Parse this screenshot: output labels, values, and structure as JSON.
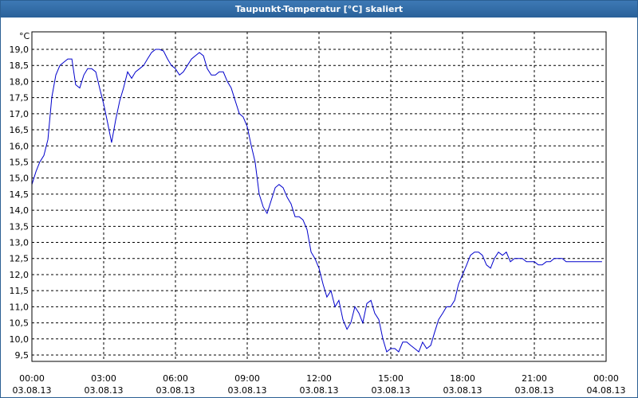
{
  "window": {
    "title": "Taupunkt-Temperatur [°C] skaliert"
  },
  "colors": {
    "titlebar": "#2f6aa5",
    "line": "#0000cc",
    "grid": "#000000"
  },
  "chart_data": {
    "type": "line",
    "title": "Taupunkt-Temperatur [°C] skaliert",
    "ylabel": "°C",
    "xlabel": "",
    "ylim": [
      9.5,
      19.4
    ],
    "xlim": [
      0,
      24
    ],
    "grid": true,
    "y_ticks": [
      "9,5",
      "10,0",
      "10,5",
      "11,0",
      "11,5",
      "12,0",
      "12,5",
      "13,0",
      "13,5",
      "14,0",
      "14,5",
      "15,0",
      "15,5",
      "16,0",
      "16,5",
      "17,0",
      "17,5",
      "18,0",
      "18,5",
      "19,0"
    ],
    "x_ticks": [
      {
        "time": "00:00",
        "date": "03.08.13"
      },
      {
        "time": "03:00",
        "date": "03.08.13"
      },
      {
        "time": "06:00",
        "date": "03.08.13"
      },
      {
        "time": "09:00",
        "date": "03.08.13"
      },
      {
        "time": "12:00",
        "date": "03.08.13"
      },
      {
        "time": "15:00",
        "date": "03.08.13"
      },
      {
        "time": "18:00",
        "date": "03.08.13"
      },
      {
        "time": "21:00",
        "date": "03.08.13"
      },
      {
        "time": "00:00",
        "date": "04.08.13"
      }
    ],
    "series": [
      {
        "x": [
          0,
          0.17,
          0.33,
          0.5,
          0.67,
          0.83,
          1.0,
          1.17,
          1.33,
          1.5,
          1.67,
          1.83,
          2.0,
          2.17,
          2.33,
          2.5,
          2.67,
          2.83,
          3.0,
          3.17,
          3.33,
          3.5,
          3.67,
          3.83,
          4.0,
          4.17,
          4.33,
          4.5,
          4.67,
          4.83,
          5.0,
          5.17,
          5.33,
          5.5,
          5.67,
          5.83,
          6.0,
          6.17,
          6.33,
          6.5,
          6.67,
          6.83,
          7.0,
          7.17,
          7.33,
          7.5,
          7.67,
          7.83,
          8.0,
          8.17,
          8.33,
          8.5,
          8.67,
          8.83,
          9.0,
          9.17,
          9.33,
          9.5,
          9.67,
          9.83,
          10.0,
          10.17,
          10.33,
          10.5,
          10.67,
          10.83,
          11.0,
          11.17,
          11.33,
          11.5,
          11.67,
          11.83,
          12.0,
          12.17,
          12.33,
          12.5,
          12.67,
          12.83,
          13.0,
          13.17,
          13.33,
          13.5,
          13.67,
          13.83,
          14.0,
          14.17,
          14.33,
          14.5,
          14.67,
          14.83,
          15.0,
          15.17,
          15.33,
          15.5,
          15.67,
          15.83,
          16.0,
          16.17,
          16.33,
          16.5,
          16.67,
          16.83,
          17.0,
          17.17,
          17.33,
          17.5,
          17.67,
          17.83,
          18.0,
          18.17,
          18.33,
          18.5,
          18.67,
          18.83,
          19.0,
          19.17,
          19.33,
          19.5,
          19.67,
          19.83,
          20.0,
          20.17,
          20.33,
          20.5,
          20.67,
          20.83,
          21.0,
          21.17,
          21.33,
          21.5,
          21.67,
          21.83,
          22.0,
          22.17,
          22.33,
          22.5,
          22.67,
          22.83,
          23.0,
          23.17,
          23.33,
          23.5,
          23.67,
          23.83
        ],
        "values": [
          14.8,
          15.2,
          15.5,
          15.7,
          16.2,
          17.5,
          18.2,
          18.5,
          18.6,
          18.7,
          18.7,
          17.9,
          17.8,
          18.2,
          18.4,
          18.4,
          18.3,
          17.8,
          17.3,
          16.7,
          16.1,
          16.8,
          17.4,
          17.8,
          18.3,
          18.1,
          18.3,
          18.4,
          18.5,
          18.7,
          18.9,
          19.0,
          19.0,
          18.95,
          18.7,
          18.5,
          18.4,
          18.2,
          18.3,
          18.5,
          18.7,
          18.8,
          18.9,
          18.8,
          18.4,
          18.2,
          18.2,
          18.3,
          18.3,
          18.0,
          17.8,
          17.4,
          17.0,
          16.9,
          16.6,
          16.0,
          15.5,
          14.5,
          14.1,
          13.9,
          14.3,
          14.7,
          14.8,
          14.7,
          14.4,
          14.2,
          13.8,
          13.8,
          13.7,
          13.4,
          12.7,
          12.5,
          12.2,
          11.7,
          11.3,
          11.5,
          11.0,
          11.2,
          10.6,
          10.3,
          10.5,
          11.0,
          10.8,
          10.5,
          11.1,
          11.2,
          10.8,
          10.6,
          10.0,
          9.6,
          9.7,
          9.7,
          9.6,
          9.9,
          9.9,
          9.8,
          9.7,
          9.6,
          9.9,
          9.7,
          9.8,
          10.2,
          10.6,
          10.8,
          11.0,
          11.0,
          11.2,
          11.7,
          12.0,
          12.3,
          12.6,
          12.7,
          12.7,
          12.6,
          12.3,
          12.2,
          12.5,
          12.7,
          12.6,
          12.7,
          12.4,
          12.5,
          12.5,
          12.5,
          12.4,
          12.4,
          12.4,
          12.3,
          12.3,
          12.4,
          12.4,
          12.5,
          12.5,
          12.5,
          12.4,
          12.4,
          12.4,
          12.4,
          12.4,
          12.4,
          12.4,
          12.4,
          12.4,
          12.4
        ]
      }
    ]
  }
}
